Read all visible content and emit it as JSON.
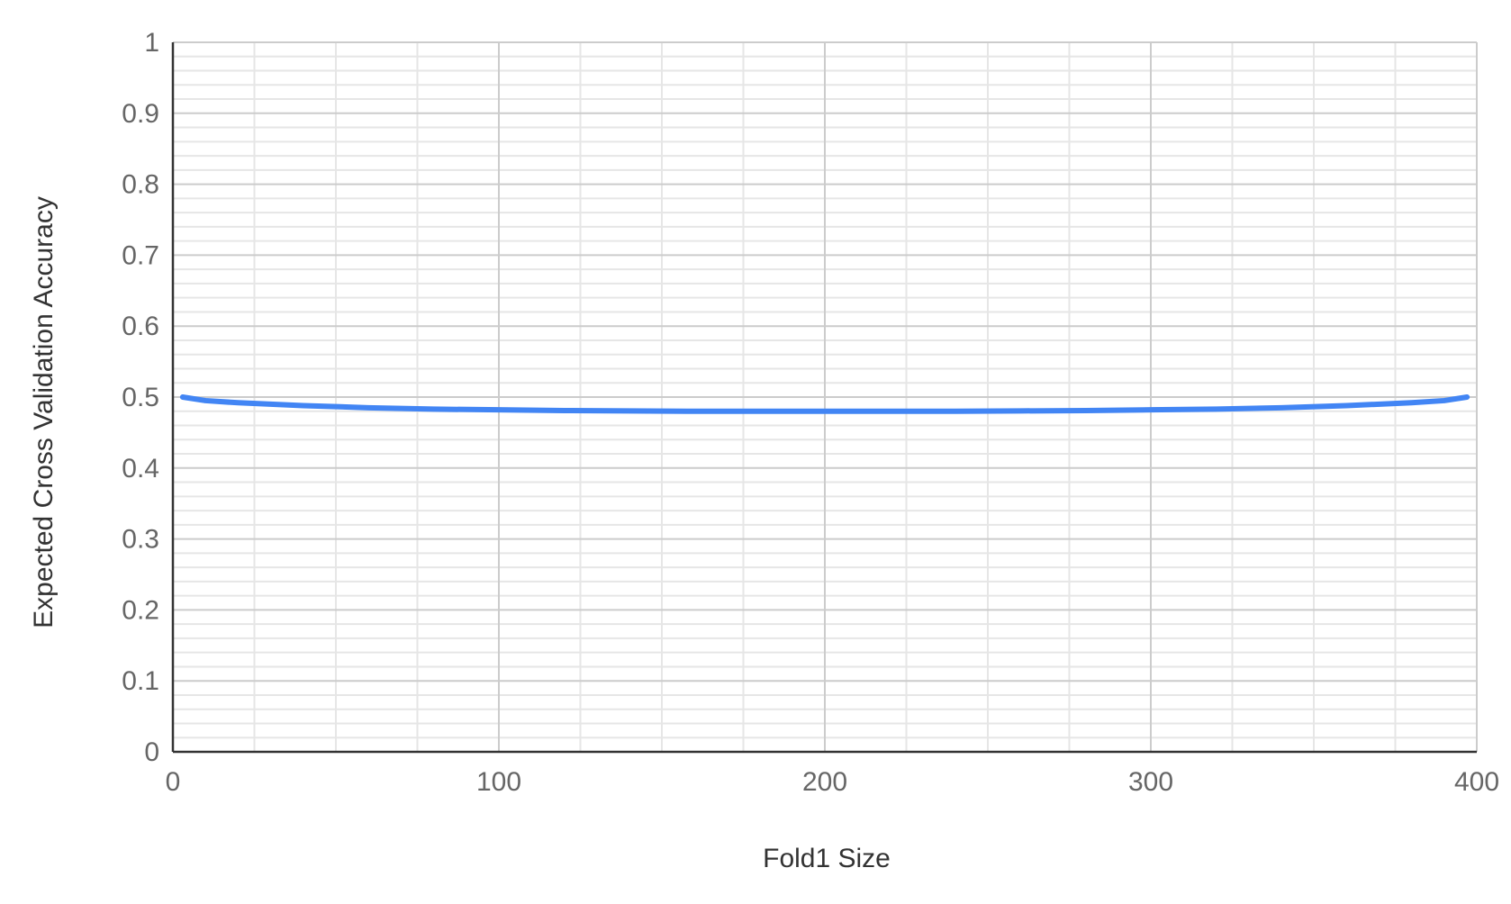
{
  "chart_data": {
    "type": "line",
    "xlabel": "Fold1 Size",
    "ylabel": "Expected Cross Validation Accuracy",
    "xlim": [
      0,
      400
    ],
    "ylim": [
      0,
      1
    ],
    "x_ticks": [
      0,
      100,
      200,
      300,
      400
    ],
    "y_ticks": [
      0,
      0.1,
      0.2,
      0.3,
      0.4,
      0.5,
      0.6,
      0.7,
      0.8,
      0.9,
      1
    ],
    "x_tick_labels": [
      "0",
      "100",
      "200",
      "300",
      "400"
    ],
    "y_tick_labels": [
      "0",
      "0.1",
      "0.2",
      "0.3",
      "0.4",
      "0.5",
      "0.6",
      "0.7",
      "0.8",
      "0.9",
      "1"
    ],
    "x_minor_step": 25,
    "y_minor_step": 0.02,
    "grid": true,
    "legend": "none",
    "series": [
      {
        "color": "#4285f4",
        "x": [
          3,
          10,
          20,
          40,
          60,
          80,
          100,
          120,
          140,
          160,
          180,
          200,
          220,
          240,
          260,
          280,
          300,
          320,
          340,
          360,
          380,
          390,
          397
        ],
        "y": [
          0.5,
          0.495,
          0.492,
          0.488,
          0.485,
          0.483,
          0.482,
          0.481,
          0.4805,
          0.48,
          0.48,
          0.48,
          0.48,
          0.48,
          0.4805,
          0.481,
          0.482,
          0.483,
          0.485,
          0.488,
          0.492,
          0.495,
          0.5
        ]
      }
    ],
    "colors": {
      "major_grid": "#cccccc",
      "minor_grid": "#e6e6e6",
      "axis": "#333333"
    }
  }
}
